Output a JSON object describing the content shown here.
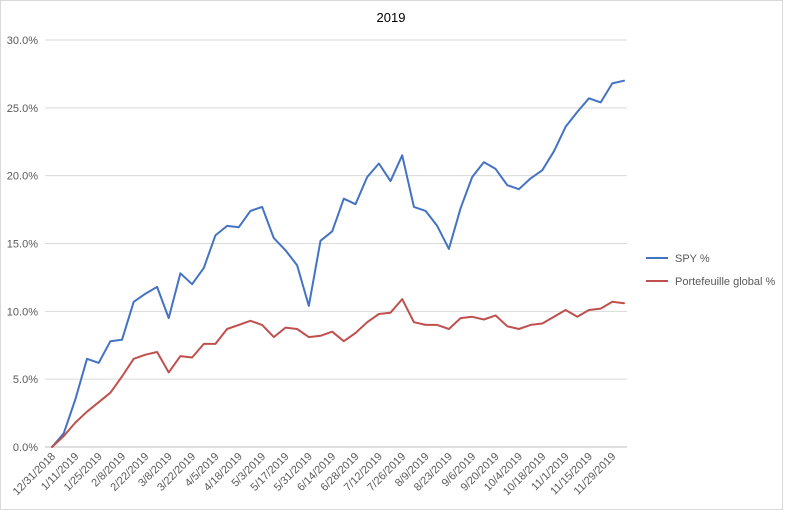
{
  "chart_data": {
    "type": "line",
    "title": "2019",
    "xlabel": "",
    "ylabel": "",
    "ylim": [
      0,
      30
    ],
    "y_ticks": [
      "0.0%",
      "5.0%",
      "10.0%",
      "15.0%",
      "20.0%",
      "25.0%",
      "30.0%"
    ],
    "grid": "horizontal",
    "legend_position": "right",
    "x": [
      "12/31/2018",
      "1/4/2019",
      "1/11/2019",
      "1/18/2019",
      "1/25/2019",
      "2/1/2019",
      "2/8/2019",
      "2/15/2019",
      "2/22/2019",
      "3/1/2019",
      "3/8/2019",
      "3/15/2019",
      "3/22/2019",
      "3/29/2019",
      "4/5/2019",
      "4/12/2019",
      "4/18/2019",
      "4/26/2019",
      "5/3/2019",
      "5/10/2019",
      "5/17/2019",
      "5/24/2019",
      "5/31/2019",
      "6/7/2019",
      "6/14/2019",
      "6/21/2019",
      "6/28/2019",
      "7/5/2019",
      "7/12/2019",
      "7/19/2019",
      "7/26/2019",
      "8/2/2019",
      "8/9/2019",
      "8/16/2019",
      "8/23/2019",
      "8/30/2019",
      "9/6/2019",
      "9/13/2019",
      "9/20/2019",
      "9/27/2019",
      "10/4/2019",
      "10/11/2019",
      "10/18/2019",
      "10/25/2019",
      "11/1/2019",
      "11/8/2019",
      "11/15/2019",
      "11/22/2019",
      "11/29/2019",
      "12/6/2019"
    ],
    "x_tick_labels": [
      "12/31/2018",
      "1/11/2019",
      "1/25/2019",
      "2/8/2019",
      "2/22/2019",
      "3/8/2019",
      "3/22/2019",
      "4/5/2019",
      "4/18/2019",
      "5/3/2019",
      "5/17/2019",
      "5/31/2019",
      "6/14/2019",
      "6/28/2019",
      "7/12/2019",
      "7/26/2019",
      "8/9/2019",
      "8/23/2019",
      "9/6/2019",
      "9/20/2019",
      "10/4/2019",
      "10/18/2019",
      "11/1/2019",
      "11/15/2019",
      "11/29/2019"
    ],
    "series": [
      {
        "name": "SPY %",
        "color": "#4472c4",
        "values": [
          0.0,
          1.0,
          3.5,
          6.5,
          6.2,
          7.8,
          7.9,
          10.7,
          11.3,
          11.8,
          9.5,
          12.8,
          12.0,
          13.2,
          15.6,
          16.3,
          16.2,
          17.4,
          17.7,
          15.4,
          14.5,
          13.4,
          10.4,
          15.2,
          15.9,
          18.3,
          17.9,
          19.9,
          20.9,
          19.6,
          21.5,
          17.7,
          17.4,
          16.3,
          14.6,
          17.6,
          19.9,
          21.0,
          20.5,
          19.3,
          19.0,
          19.8,
          20.4,
          21.8,
          23.6,
          24.7,
          25.7,
          25.4,
          26.8,
          27.0
        ]
      },
      {
        "name": "Portefeuille global %",
        "color": "#c0504d",
        "values": [
          0.0,
          0.8,
          1.8,
          2.6,
          3.3,
          4.0,
          5.2,
          6.5,
          6.8,
          7.0,
          5.5,
          6.7,
          6.6,
          7.6,
          7.6,
          8.7,
          9.0,
          9.3,
          9.0,
          8.1,
          8.8,
          8.7,
          8.1,
          8.2,
          8.5,
          7.8,
          8.4,
          9.2,
          9.8,
          9.9,
          10.9,
          9.2,
          9.0,
          9.0,
          8.7,
          9.5,
          9.6,
          9.4,
          9.7,
          8.9,
          8.7,
          9.0,
          9.1,
          9.6,
          10.1,
          9.6,
          10.1,
          10.2,
          10.7,
          10.6
        ]
      }
    ]
  }
}
